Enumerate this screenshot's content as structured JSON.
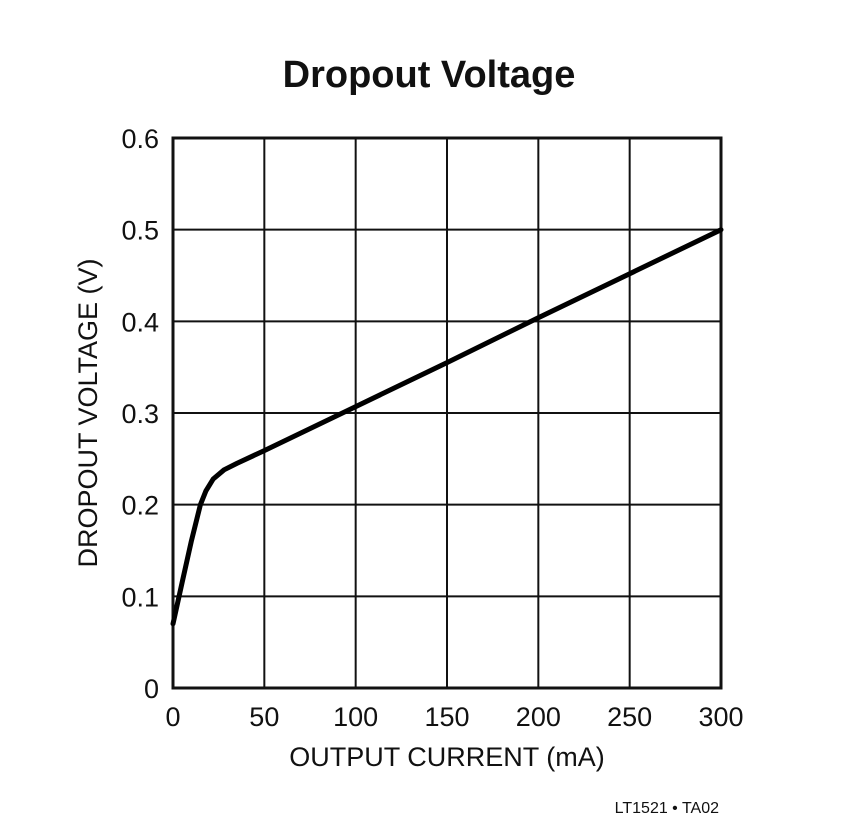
{
  "chart_data": {
    "type": "line",
    "title": "Dropout Voltage",
    "xlabel": "OUTPUT CURRENT (mA)",
    "ylabel": "DROPOUT VOLTAGE (V)",
    "xlim": [
      0,
      300
    ],
    "ylim": [
      0,
      0.6
    ],
    "x_ticks": [
      "0",
      "50",
      "100",
      "150",
      "200",
      "250",
      "300"
    ],
    "y_ticks": [
      "0",
      "0.1",
      "0.2",
      "0.3",
      "0.4",
      "0.5",
      "0.6"
    ],
    "grid": true,
    "series": [
      {
        "x": [
          0,
          5,
          10,
          15,
          18,
          22,
          28,
          35,
          50,
          100,
          150,
          200,
          250,
          300
        ],
        "y": [
          0.07,
          0.115,
          0.16,
          0.2,
          0.215,
          0.228,
          0.238,
          0.245,
          0.259,
          0.307,
          0.355,
          0.404,
          0.452,
          0.5
        ]
      }
    ],
    "footer": "LT1521 • TA02"
  }
}
